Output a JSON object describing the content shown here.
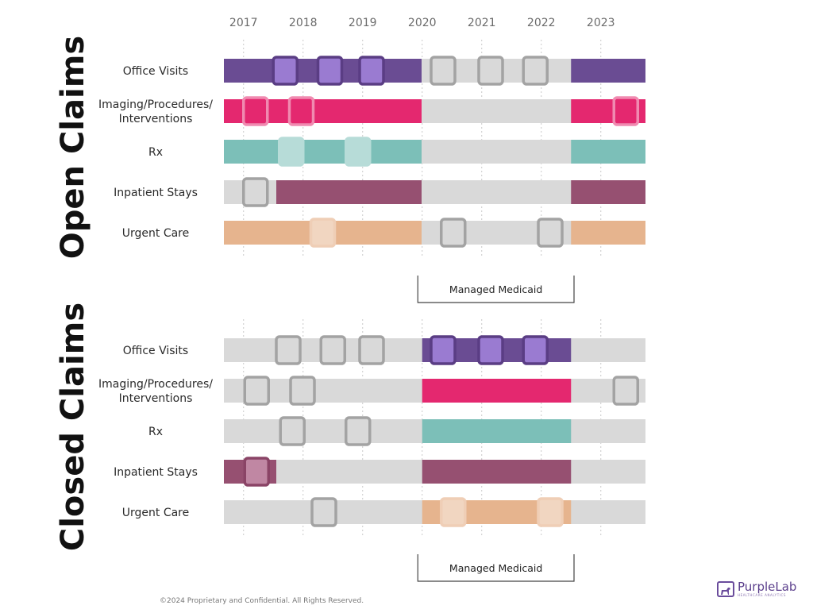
{
  "chart_data": {
    "type": "timeline",
    "years": [
      "2017",
      "2018",
      "2019",
      "2020",
      "2021",
      "2022",
      "2023"
    ],
    "x_range": [
      2016.67,
      2023.75
    ],
    "colors": {
      "Office Visits": "#6a4c93",
      "Imaging/Procedures/ Interventions": "#e4286f",
      "Rx": "#7cbfb8",
      "Inpatient Stays": "#965071",
      "Urgent Care": "#e6b48e",
      "inactive": "#d9d9d9"
    },
    "sections": [
      {
        "title": "Open Claims",
        "bracket_label": "Managed Medicaid",
        "bracket_range": [
          2019.9,
          2022.55
        ],
        "rows": [
          {
            "label": "Office Visits",
            "active": [
              [
                2016.67,
                2019.99
              ],
              [
                2022.5,
                2023.75
              ]
            ],
            "events": [
              {
                "x": 2017.7,
                "on": true
              },
              {
                "x": 2018.45,
                "on": true
              },
              {
                "x": 2019.15,
                "on": true
              },
              {
                "x": 2020.35,
                "on": false
              },
              {
                "x": 2021.15,
                "on": false
              },
              {
                "x": 2021.9,
                "on": false
              }
            ]
          },
          {
            "label": "Imaging/Procedures/ Interventions",
            "active": [
              [
                2016.67,
                2019.99
              ],
              [
                2022.5,
                2023.75
              ]
            ],
            "events": [
              {
                "x": 2017.2,
                "on": true
              },
              {
                "x": 2017.97,
                "on": true
              },
              {
                "x": 2023.42,
                "on": true
              }
            ]
          },
          {
            "label": "Rx",
            "active": [
              [
                2016.67,
                2019.99
              ],
              [
                2022.5,
                2023.75
              ]
            ],
            "events": [
              {
                "x": 2017.8,
                "on": true
              },
              {
                "x": 2018.92,
                "on": true
              }
            ]
          },
          {
            "label": "Inpatient Stays",
            "active": [
              [
                2017.55,
                2019.99
              ],
              [
                2022.5,
                2023.75
              ]
            ],
            "events": [
              {
                "x": 2017.2,
                "on": false
              }
            ]
          },
          {
            "label": "Urgent Care",
            "active": [
              [
                2016.67,
                2019.99
              ],
              [
                2022.5,
                2023.75
              ]
            ],
            "events": [
              {
                "x": 2018.33,
                "on": true
              },
              {
                "x": 2020.52,
                "on": false
              },
              {
                "x": 2022.15,
                "on": false
              }
            ]
          }
        ]
      },
      {
        "title": "Closed Claims",
        "bracket_label": "Managed Medicaid",
        "bracket_range": [
          2019.9,
          2022.55
        ],
        "rows": [
          {
            "label": "Office Visits",
            "active": [
              [
                2020.0,
                2022.5
              ]
            ],
            "events": [
              {
                "x": 2017.75,
                "on": false
              },
              {
                "x": 2018.5,
                "on": false
              },
              {
                "x": 2019.15,
                "on": false
              },
              {
                "x": 2020.35,
                "on": true
              },
              {
                "x": 2021.15,
                "on": true
              },
              {
                "x": 2021.9,
                "on": true
              }
            ]
          },
          {
            "label": "Imaging/Procedures/ Interventions",
            "active": [
              [
                2020.0,
                2022.5
              ]
            ],
            "events": [
              {
                "x": 2017.22,
                "on": false
              },
              {
                "x": 2017.99,
                "on": false
              },
              {
                "x": 2023.42,
                "on": false
              }
            ]
          },
          {
            "label": "Rx",
            "active": [
              [
                2020.0,
                2022.5
              ]
            ],
            "events": [
              {
                "x": 2017.82,
                "on": false
              },
              {
                "x": 2018.92,
                "on": false
              }
            ]
          },
          {
            "label": "Inpatient Stays",
            "active": [
              [
                2016.67,
                2017.55
              ],
              [
                2020.0,
                2022.5
              ]
            ],
            "events": [
              {
                "x": 2017.22,
                "on": true
              }
            ]
          },
          {
            "label": "Urgent Care",
            "active": [
              [
                2020.0,
                2022.5
              ]
            ],
            "events": [
              {
                "x": 2018.35,
                "on": false
              },
              {
                "x": 2020.52,
                "on": true
              },
              {
                "x": 2022.15,
                "on": true
              }
            ]
          }
        ]
      }
    ]
  },
  "footer": {
    "copyright": "©2024 Proprietary and Confidential. All Rights Reserved."
  },
  "logo": {
    "name": "PurpleLab",
    "tagline": "HEALTHCARE ANALYTICS"
  }
}
